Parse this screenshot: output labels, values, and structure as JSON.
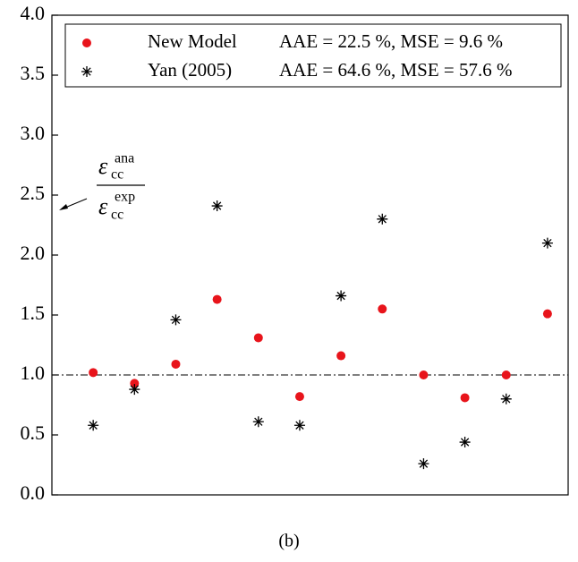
{
  "chart_data": {
    "type": "scatter",
    "x": [
      1,
      2,
      3,
      4,
      5,
      6,
      7,
      8,
      9,
      10,
      11,
      12
    ],
    "xlim": [
      0,
      12.5
    ],
    "ylim": [
      0,
      4
    ],
    "yticks": [
      {
        "value": 0,
        "label": "0.0"
      },
      {
        "value": 0.5,
        "label": "0.5"
      },
      {
        "value": 1,
        "label": "1.0"
      },
      {
        "value": 1.5,
        "label": "1.5"
      },
      {
        "value": 2,
        "label": "2.0"
      },
      {
        "value": 2.5,
        "label": "2.5"
      },
      {
        "value": 3,
        "label": "3.0"
      },
      {
        "value": 3.5,
        "label": "3.5"
      },
      {
        "value": 4,
        "label": "4.0"
      }
    ],
    "reference_line": 1,
    "series": [
      {
        "name": "New Model",
        "stats": "AAE = 22.5 %, MSE = 9.6 %",
        "color": "#e8141b",
        "marker": "circle",
        "values": [
          1.02,
          0.93,
          1.09,
          1.63,
          1.31,
          0.82,
          1.16,
          1.55,
          1.0,
          0.81,
          1.0,
          1.51
        ]
      },
      {
        "name": "Yan (2005)",
        "stats": "AAE = 64.6 %, MSE = 57.6 %",
        "color": "#000000",
        "marker": "star",
        "values": [
          0.58,
          0.88,
          1.46,
          2.41,
          0.61,
          0.58,
          1.66,
          2.3,
          0.26,
          0.44,
          0.8,
          2.1
        ]
      }
    ],
    "annotation": {
      "symbol": "ε",
      "subscript": "cc",
      "numerator_superscript": "ana",
      "denominator_superscript": "exp"
    },
    "caption": "(b)"
  }
}
